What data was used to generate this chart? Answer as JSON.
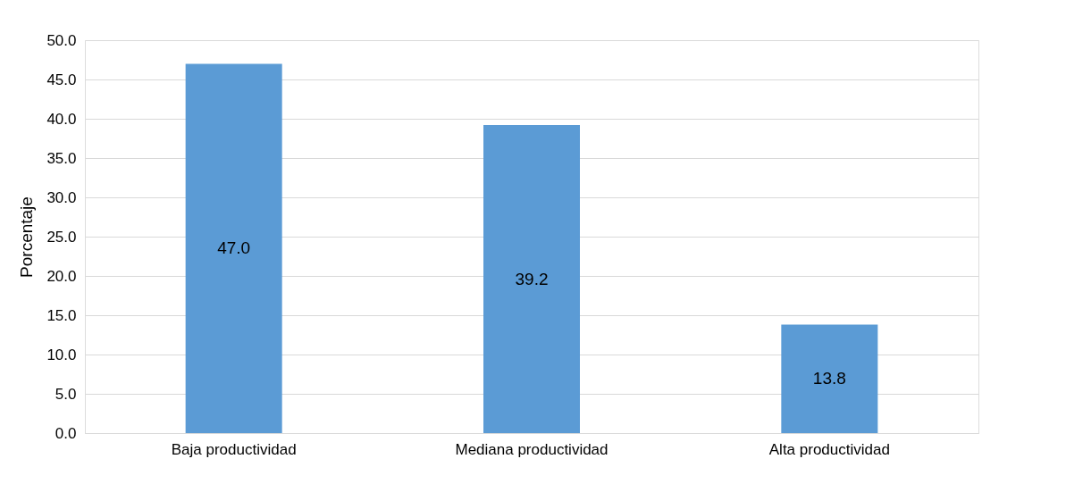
{
  "chart_data": {
    "type": "bar",
    "ylabel": "Porcentaje",
    "categories": [
      "Baja productividad",
      "Mediana productividad",
      "Alta productividad"
    ],
    "values": [
      47.0,
      39.2,
      13.8
    ],
    "color": "#5b9bd5",
    "value_labels": [
      "47.0",
      "39.2",
      "13.8"
    ],
    "ylim": [
      0,
      50
    ],
    "yticks": [
      {
        "value": 0,
        "label": "0.0"
      },
      {
        "value": 5,
        "label": "5.0"
      },
      {
        "value": 10,
        "label": "10.0"
      },
      {
        "value": 15,
        "label": "15.0"
      },
      {
        "value": 20,
        "label": "20.0"
      },
      {
        "value": 25,
        "label": "25.0"
      },
      {
        "value": 30,
        "label": "30.0"
      },
      {
        "value": 35,
        "label": "35.0"
      },
      {
        "value": 40,
        "label": "40.0"
      },
      {
        "value": 45,
        "label": "45.0"
      },
      {
        "value": 50,
        "label": "50.0"
      }
    ],
    "grid": "y"
  }
}
